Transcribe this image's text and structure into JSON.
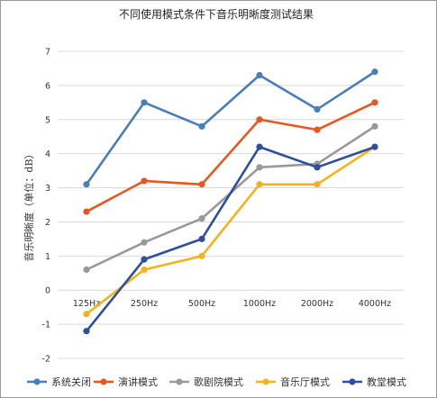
{
  "chart_data": {
    "type": "line",
    "title": "不同使用模式条件下音乐明晰度测试结果",
    "xlabel": "",
    "ylabel": "音乐明晰度（单位：dB）",
    "categories": [
      "125Hz",
      "250Hz",
      "500Hz",
      "1000Hz",
      "2000Hz",
      "4000Hz"
    ],
    "ylim": [
      -2,
      7
    ],
    "yticks": [
      -2,
      -1,
      0,
      1,
      2,
      3,
      4,
      5,
      6,
      7
    ],
    "grid": true,
    "legend_position": "bottom",
    "series": [
      {
        "name": "系统关闭",
        "color": "#4a7ebb",
        "values": [
          3.1,
          5.5,
          4.8,
          6.3,
          5.3,
          6.4
        ]
      },
      {
        "name": "演讲模式",
        "color": "#e8571f",
        "values": [
          2.3,
          3.2,
          3.1,
          5.0,
          4.7,
          5.5
        ]
      },
      {
        "name": "歌剧院模式",
        "color": "#999999",
        "values": [
          0.6,
          1.4,
          2.1,
          3.6,
          3.7,
          4.8
        ]
      },
      {
        "name": "音乐厅模式",
        "color": "#f5b31a",
        "values": [
          -0.7,
          0.6,
          1.0,
          3.1,
          3.1,
          4.2
        ]
      },
      {
        "name": "教堂模式",
        "color": "#2e4f9e",
        "values": [
          -1.2,
          0.9,
          1.5,
          4.2,
          3.6,
          4.2
        ]
      }
    ]
  }
}
